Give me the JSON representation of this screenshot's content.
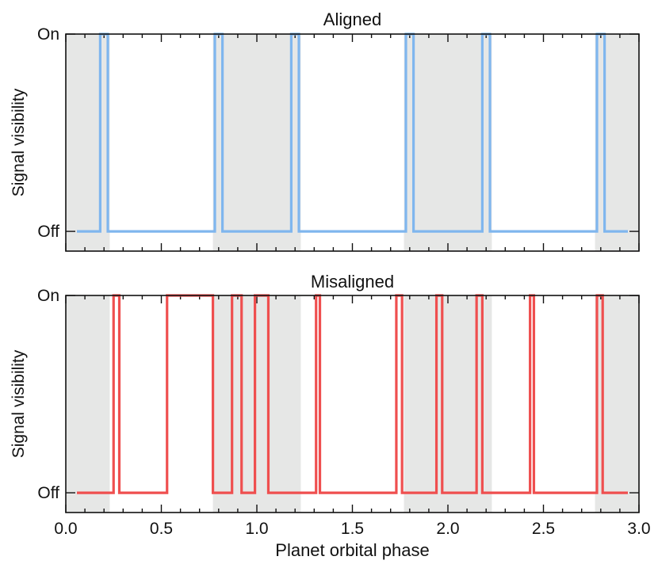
{
  "figure": {
    "xlabel": "Planet orbital phase",
    "background_color": "#ffffff",
    "shade_color": "#e6e7e6",
    "axis_color": "#111111"
  },
  "chart_data": [
    {
      "type": "line",
      "title": "Aligned",
      "xlabel": "",
      "ylabel": "Signal visibility",
      "xlim": [
        0.0,
        3.0
      ],
      "ylim": [
        -0.1,
        1.0
      ],
      "x_ticks": [
        "0.0",
        "0.5",
        "1.0",
        "1.5",
        "2.0",
        "2.5",
        "3.0"
      ],
      "x_tick_labels_shown": false,
      "y_ticks": [
        {
          "value": 0,
          "label": "Off"
        },
        {
          "value": 1,
          "label": "On"
        }
      ],
      "shaded_regions": [
        [
          0.0,
          0.23
        ],
        [
          0.77,
          1.23
        ],
        [
          1.77,
          2.23
        ],
        [
          2.77,
          3.0
        ]
      ],
      "grid": false,
      "series": [
        {
          "color": "#7fb6ee",
          "step": true,
          "on_intervals": [
            [
              0.18,
              0.22
            ],
            [
              0.78,
              0.82
            ],
            [
              1.18,
              1.22
            ],
            [
              1.78,
              1.82
            ],
            [
              2.18,
              2.22
            ],
            [
              2.78,
              2.82
            ]
          ]
        }
      ]
    },
    {
      "type": "line",
      "title": "Misaligned",
      "xlabel": "Planet orbital phase",
      "ylabel": "Signal visibility",
      "xlim": [
        0.0,
        3.0
      ],
      "ylim": [
        -0.1,
        1.0
      ],
      "x_ticks": [
        "0.0",
        "0.5",
        "1.0",
        "1.5",
        "2.0",
        "2.5",
        "3.0"
      ],
      "x_tick_labels_shown": true,
      "y_ticks": [
        {
          "value": 0,
          "label": "Off"
        },
        {
          "value": 1,
          "label": "On"
        }
      ],
      "shaded_regions": [
        [
          0.0,
          0.23
        ],
        [
          0.77,
          1.23
        ],
        [
          1.77,
          2.23
        ],
        [
          2.77,
          3.0
        ]
      ],
      "grid": false,
      "series": [
        {
          "color": "#ef4f4f",
          "step": true,
          "on_intervals": [
            [
              0.25,
              0.28
            ],
            [
              0.53,
              0.77
            ],
            [
              0.87,
              0.92
            ],
            [
              0.99,
              1.06
            ],
            [
              1.31,
              1.33
            ],
            [
              1.73,
              1.76
            ],
            [
              1.94,
              1.97
            ],
            [
              2.15,
              2.18
            ],
            [
              2.43,
              2.45
            ],
            [
              2.78,
              2.81
            ]
          ]
        }
      ]
    }
  ]
}
